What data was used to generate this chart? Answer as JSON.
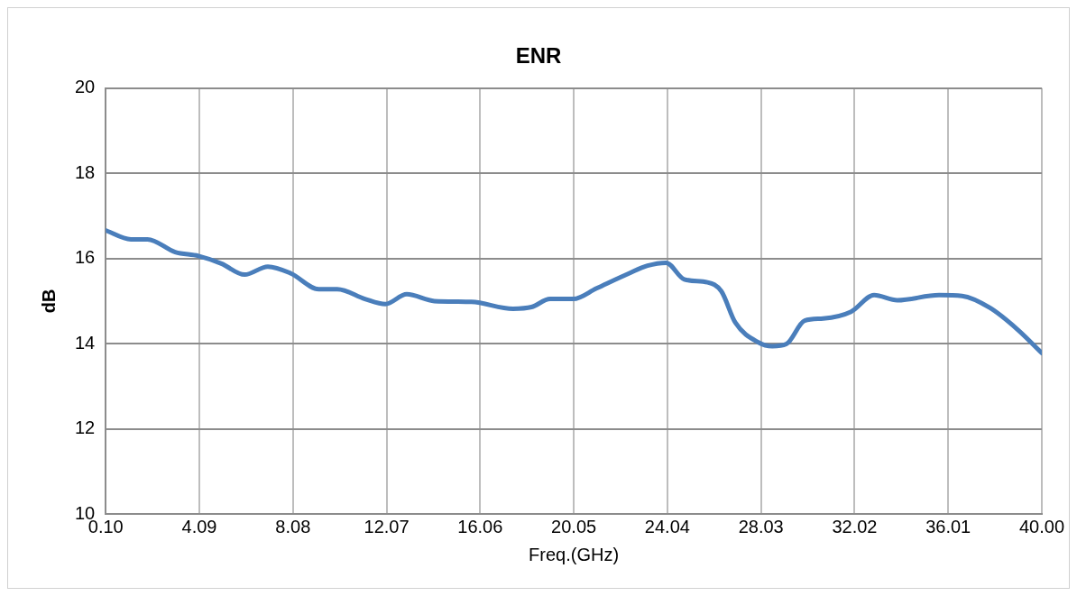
{
  "chart_data": {
    "type": "line",
    "title": "ENR",
    "xlabel": "Freq.(GHz)",
    "ylabel": "dB",
    "xlim": [
      0.1,
      40
    ],
    "xticks": [
      {
        "value": 0.1,
        "label": "0.10"
      },
      {
        "value": 4.09,
        "label": "4.09"
      },
      {
        "value": 8.08,
        "label": "8.08"
      },
      {
        "value": 12.07,
        "label": "12.07"
      },
      {
        "value": 16.06,
        "label": "16.06"
      },
      {
        "value": 20.05,
        "label": "20.05"
      },
      {
        "value": 24.04,
        "label": "24.04"
      },
      {
        "value": 28.03,
        "label": "28.03"
      },
      {
        "value": 32.02,
        "label": "32.02"
      },
      {
        "value": 36.01,
        "label": "36.01"
      },
      {
        "value": 40,
        "label": "40.00"
      }
    ],
    "ylim": [
      10,
      20
    ],
    "yticks": [
      10,
      12,
      14,
      16,
      18,
      20
    ],
    "grid": true,
    "legend": false,
    "marker": "none",
    "line_style": "solid",
    "series": [
      {
        "color": "#4a7ebb",
        "x": [
          0.1,
          1.17,
          1.88,
          3.06,
          4.05,
          5.03,
          6.02,
          7.01,
          7.99,
          9.18,
          9.97,
          11.15,
          12.02,
          12.93,
          14.11,
          15.69,
          17.46,
          18.25,
          19.04,
          20.03,
          21.02,
          22.4,
          23.19,
          23.98,
          24.76,
          25.75,
          26.34,
          26.94,
          27.92,
          28.51,
          29.11,
          29.89,
          30.68,
          31.87,
          32.85,
          33.84,
          35.62,
          36.6,
          37.79,
          38.97,
          40
        ],
        "values": [
          16.66,
          16.45,
          16.45,
          16.15,
          16.06,
          15.88,
          15.62,
          15.81,
          15.65,
          15.28,
          15.28,
          15.05,
          14.93,
          15.16,
          15.0,
          14.98,
          14.82,
          14.86,
          15.05,
          15.05,
          15.3,
          15.65,
          15.83,
          15.9,
          15.51,
          15.44,
          15.23,
          14.49,
          14.03,
          13.94,
          13.99,
          14.54,
          14.59,
          14.75,
          15.14,
          15.02,
          15.14,
          15.12,
          14.84,
          14.33,
          13.78
        ]
      }
    ]
  }
}
